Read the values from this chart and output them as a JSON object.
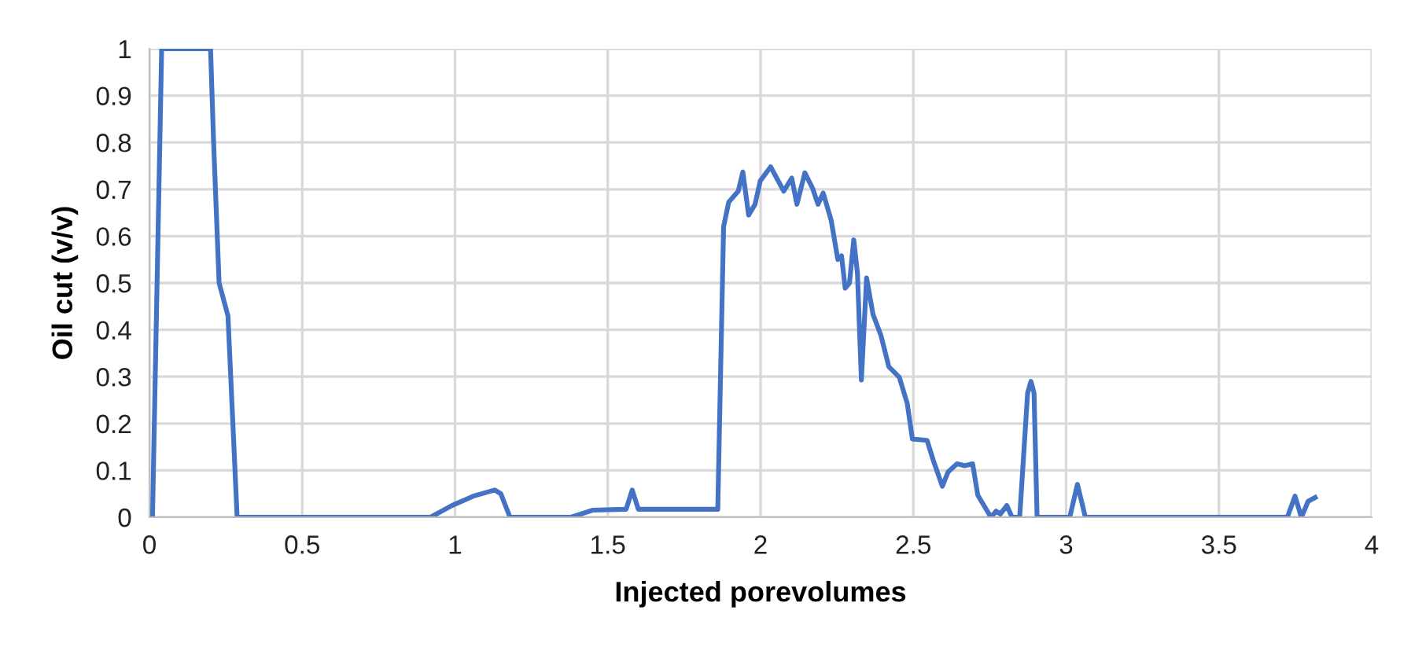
{
  "chart_data": {
    "type": "line",
    "xlabel": "Injected porevolumes",
    "ylabel": "Oil cut (v/v)",
    "xlim": [
      0,
      4
    ],
    "ylim": [
      0,
      1
    ],
    "xticks": [
      0,
      0.5,
      1,
      1.5,
      2,
      2.5,
      3,
      3.5,
      4
    ],
    "yticks": [
      0,
      0.1,
      0.2,
      0.3,
      0.4,
      0.5,
      0.6,
      0.7,
      0.8,
      0.9,
      1
    ],
    "grid": true,
    "legend": false,
    "marker": "none",
    "line_style": "solid",
    "series": [
      {
        "color": "#4472c4",
        "x": [
          0.01,
          0.04,
          0.2,
          0.21,
          0.228,
          0.257,
          0.287,
          0.3,
          0.92,
          0.99,
          1.06,
          1.13,
          1.15,
          1.18,
          1.38,
          1.45,
          1.56,
          1.58,
          1.6,
          1.86,
          1.879,
          1.896,
          1.927,
          1.942,
          1.961,
          1.982,
          1.999,
          2.033,
          2.076,
          2.102,
          2.119,
          2.145,
          2.171,
          2.188,
          2.205,
          2.231,
          2.253,
          2.265,
          2.277,
          2.291,
          2.305,
          2.317,
          2.33,
          2.347,
          2.368,
          2.394,
          2.42,
          2.454,
          2.48,
          2.497,
          2.545,
          2.566,
          2.595,
          2.614,
          2.643,
          2.668,
          2.694,
          2.711,
          2.754,
          2.771,
          2.785,
          2.806,
          2.823,
          2.848,
          2.874,
          2.885,
          2.895,
          2.905,
          3.012,
          3.037,
          3.063,
          3.724,
          3.749,
          3.77,
          3.792,
          3.815
        ],
        "values": [
          0,
          1,
          1,
          0.8,
          0.5,
          0.43,
          0,
          0,
          0,
          0.025,
          0.045,
          0.058,
          0.05,
          0,
          0,
          0.015,
          0.017,
          0.058,
          0.017,
          0.017,
          0.62,
          0.673,
          0.696,
          0.737,
          0.645,
          0.668,
          0.718,
          0.748,
          0.696,
          0.724,
          0.668,
          0.735,
          0.701,
          0.668,
          0.692,
          0.634,
          0.55,
          0.558,
          0.489,
          0.5,
          0.592,
          0.522,
          0.293,
          0.511,
          0.433,
          0.388,
          0.321,
          0.299,
          0.243,
          0.167,
          0.164,
          0.12,
          0.066,
          0.097,
          0.114,
          0.11,
          0.114,
          0.047,
          0,
          0.013,
          0.007,
          0.025,
          0,
          0,
          0.265,
          0.29,
          0.265,
          0,
          0,
          0.07,
          0,
          0,
          0.045,
          0,
          0.034,
          0.042
        ]
      }
    ]
  }
}
